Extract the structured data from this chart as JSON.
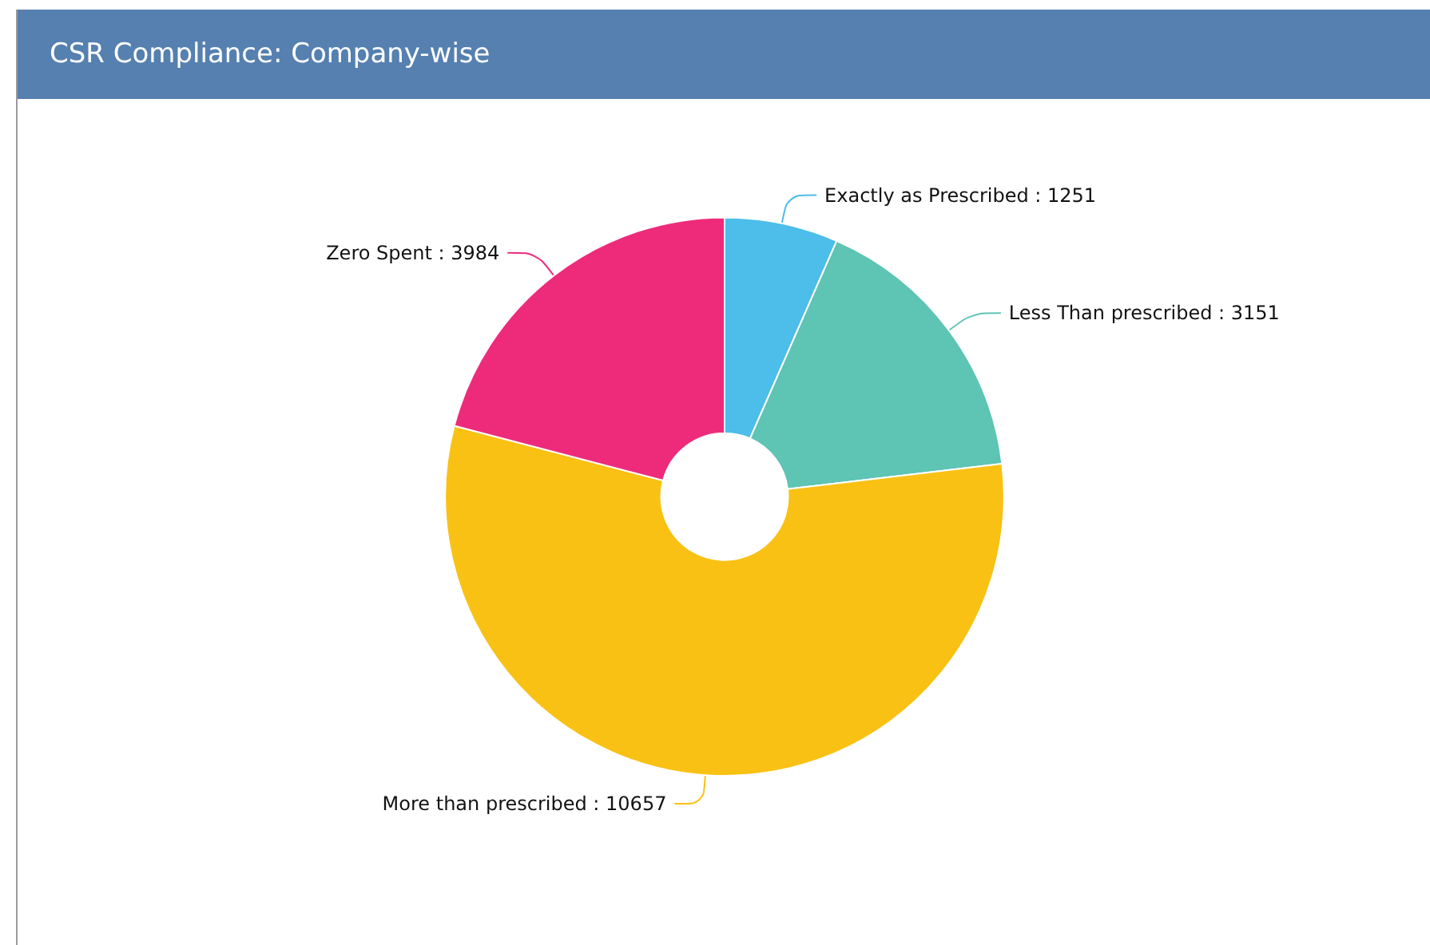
{
  "chart_data": {
    "type": "donut",
    "title": "CSR Compliance: Company-wise",
    "categories": [
      "Exactly as Prescribed",
      "Less Than prescribed",
      "More than prescribed",
      "Zero Spent"
    ],
    "values": [
      1251,
      3151,
      10657,
      3984
    ],
    "value_labels": [
      ": 1251",
      ": 3151",
      ": 10657",
      ": 3984"
    ],
    "colors": [
      "#4dbde9",
      "#5ec4b4",
      "#f9c114",
      "#ee2b7b"
    ],
    "legend": false
  }
}
